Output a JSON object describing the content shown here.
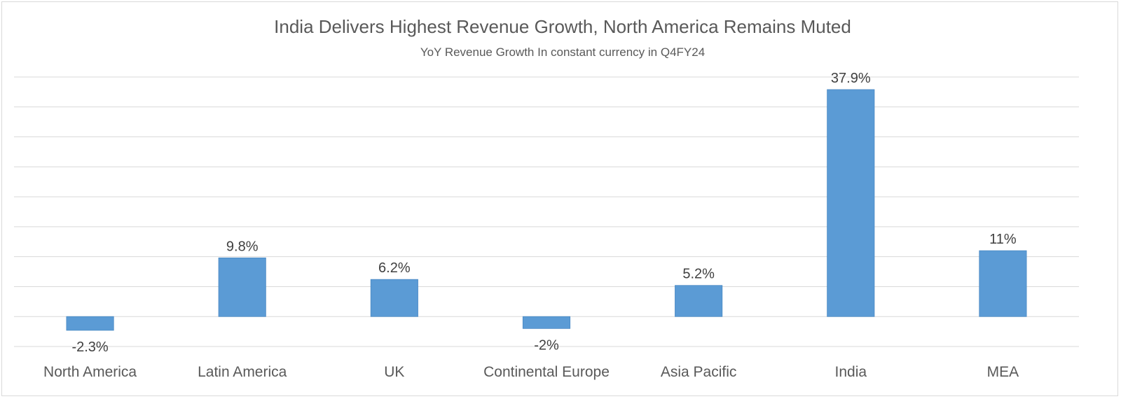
{
  "chart_data": {
    "type": "bar",
    "title": "India Delivers Highest Revenue Growth, North America Remains Muted",
    "subtitle": "YoY Revenue Growth In constant currency in Q4FY24",
    "categories": [
      "North America",
      "Latin America",
      "UK",
      "Continental Europe",
      "Asia Pacific",
      "India",
      "MEA"
    ],
    "values": [
      -2.3,
      9.8,
      6.2,
      -2.0,
      5.2,
      37.9,
      11.0
    ],
    "data_labels": [
      "-2.3%",
      "9.8%",
      "6.2%",
      "-2%",
      "5.2%",
      "37.9%",
      "11%"
    ],
    "xlabel": "",
    "ylabel": "",
    "ylim": [
      -5,
      40
    ],
    "ytick_step": 5,
    "grid": true,
    "legend": "none",
    "bar_color": "#5b9bd5"
  }
}
